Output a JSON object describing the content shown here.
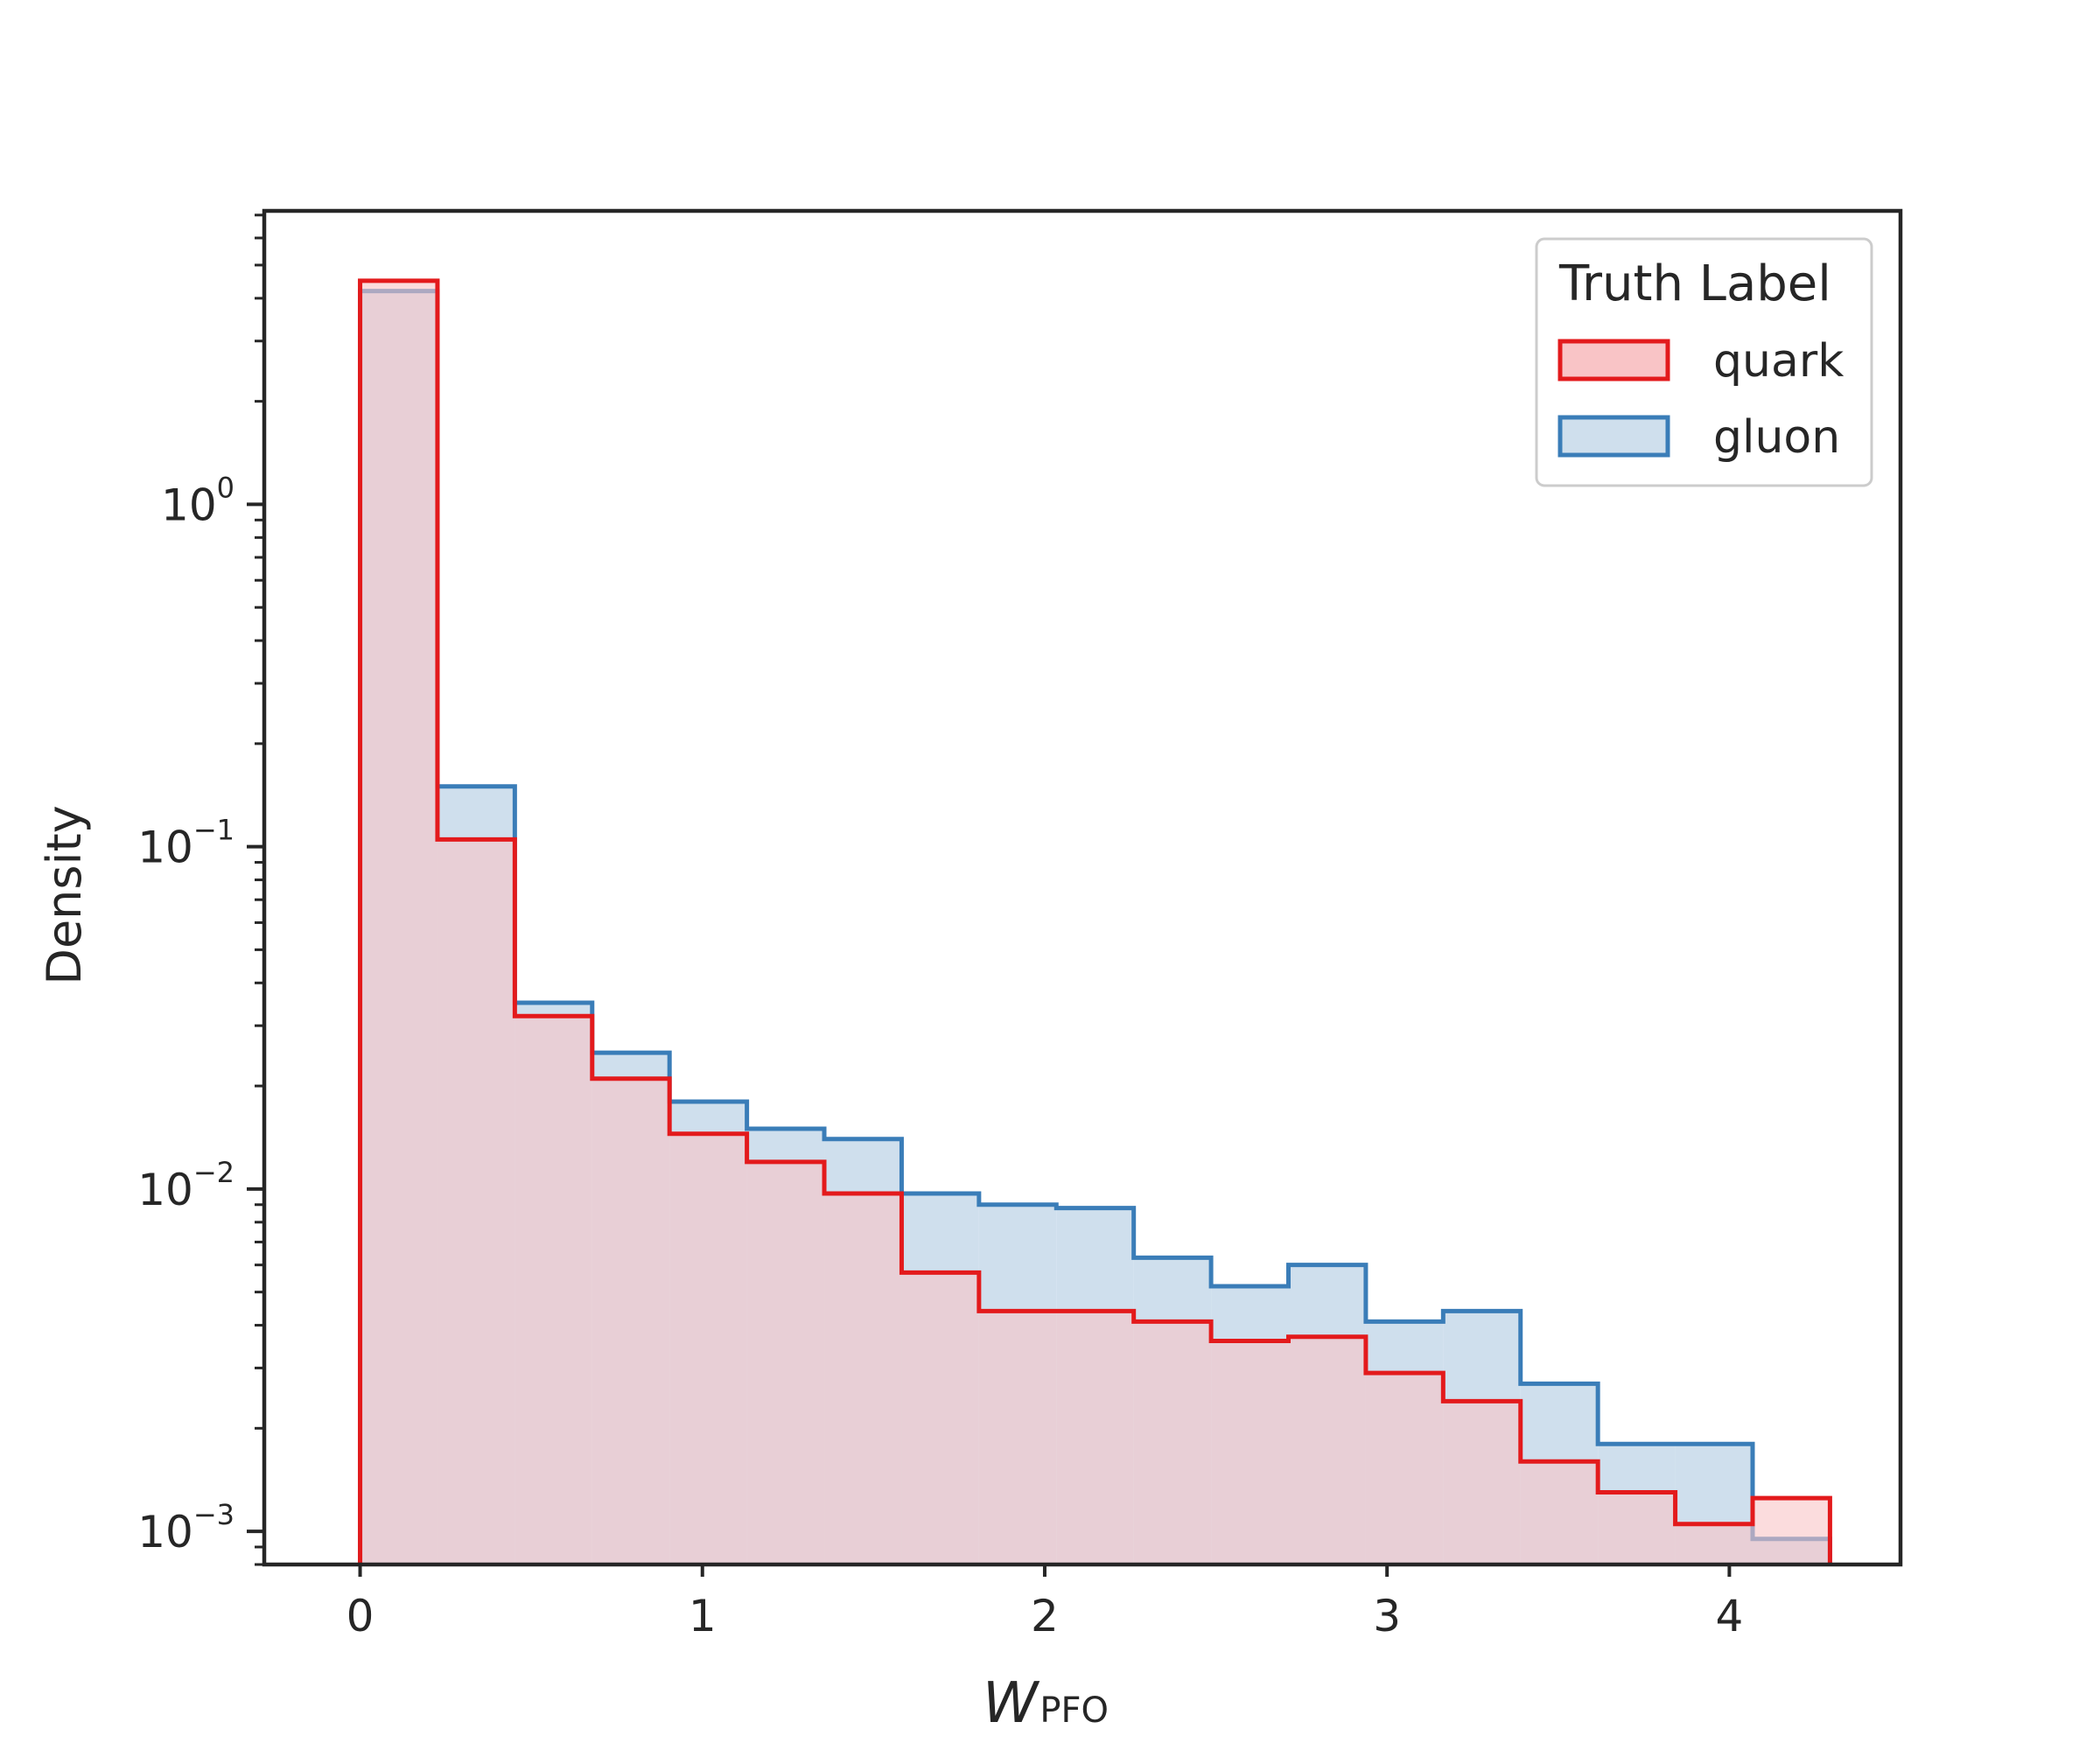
{
  "chart_data": {
    "type": "histogram",
    "xlabel_main": "W",
    "xlabel_sub": "PFO",
    "ylabel": "Density",
    "xlim": [
      -0.28,
      4.5
    ],
    "ylim": [
      0.0008,
      7.2
    ],
    "yscale": "log",
    "grid": false,
    "legend_position": "top-right",
    "xticks": [
      {
        "value": 0,
        "label": "0"
      },
      {
        "value": 1,
        "label": "1"
      },
      {
        "value": 2,
        "label": "2"
      },
      {
        "value": 3,
        "label": "3"
      },
      {
        "value": 4,
        "label": "4"
      }
    ],
    "yticks": [
      {
        "value": 1,
        "base": "10",
        "exp": "0"
      },
      {
        "value": 0.1,
        "base": "10",
        "exp": "−1"
      },
      {
        "value": 0.01,
        "base": "10",
        "exp": "−2"
      },
      {
        "value": 0.001,
        "base": "10",
        "exp": "−3"
      }
    ],
    "bin_edges": [
      0,
      0.226,
      0.452,
      0.678,
      0.904,
      1.13,
      1.356,
      1.582,
      1.808,
      2.034,
      2.26,
      2.486,
      2.712,
      2.938,
      3.164,
      3.39,
      3.616,
      3.842,
      4.068,
      4.294
    ],
    "legend_title": "Truth Label",
    "series": [
      {
        "name": "gluon",
        "edge_color": "#3a7db8",
        "fill_color": "#cfdfed",
        "values": [
          4.2,
          0.15,
          0.035,
          0.025,
          0.018,
          0.015,
          0.014,
          0.0097,
          0.009,
          0.0088,
          0.0063,
          0.0052,
          0.006,
          0.0041,
          0.0044,
          0.0027,
          0.0018,
          0.0018,
          0.00095
        ]
      },
      {
        "name": "quark",
        "edge_color": "#e31a1c",
        "fill_color": "#f9c4c6",
        "values": [
          4.5,
          0.105,
          0.032,
          0.021,
          0.0145,
          0.012,
          0.0097,
          0.0057,
          0.0044,
          0.0044,
          0.0041,
          0.0036,
          0.0037,
          0.0029,
          0.0024,
          0.0016,
          0.0013,
          0.00105,
          0.00125
        ]
      }
    ]
  }
}
